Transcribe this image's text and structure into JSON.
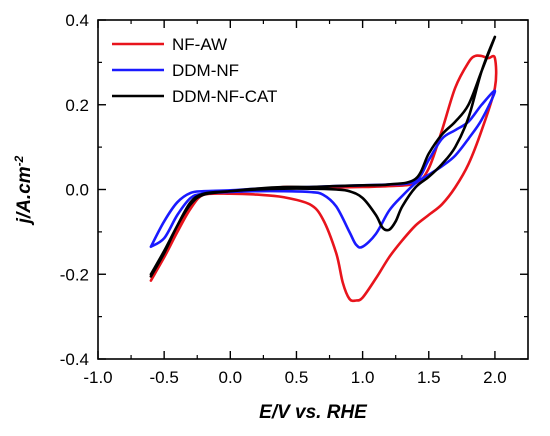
{
  "chart_data": {
    "type": "line",
    "title": "",
    "xlabel": "E/V vs. RHE",
    "ylabel_main": "j/A.cm",
    "ylabel_sup": "-2",
    "xlim": [
      -1.0,
      2.25
    ],
    "ylim": [
      -0.4,
      0.4
    ],
    "xticks": [
      -1.0,
      -0.5,
      0.0,
      0.5,
      1.0,
      1.5,
      2.0
    ],
    "xtick_labels": [
      "-1.0",
      "-0.5",
      "0.0",
      "0.5",
      "1.0",
      "1.5",
      "2.0"
    ],
    "yticks": [
      -0.4,
      -0.2,
      0.0,
      0.2,
      0.4
    ],
    "ytick_labels": [
      "-0.4",
      "-0.2",
      "0.0",
      "0.2",
      "0.4"
    ],
    "grid": false,
    "legend_position": "top-left",
    "series": [
      {
        "name": "NF-AW",
        "color": "#e8141c",
        "x": [
          -0.6,
          -0.5,
          -0.4,
          -0.3,
          -0.2,
          0.0,
          0.2,
          0.4,
          0.6,
          0.8,
          1.0,
          1.2,
          1.4,
          1.5,
          1.6,
          1.7,
          1.8,
          1.85,
          1.9,
          1.95,
          2.0,
          2.0,
          1.9,
          1.8,
          1.7,
          1.6,
          1.5,
          1.4,
          1.3,
          1.2,
          1.1,
          1.0,
          0.95,
          0.9,
          0.85,
          0.8,
          0.7,
          0.6,
          0.4,
          0.2,
          0.0,
          -0.2,
          -0.3,
          -0.4,
          -0.5,
          -0.6
        ],
        "y": [
          -0.215,
          -0.16,
          -0.1,
          -0.045,
          -0.012,
          -0.006,
          -0.002,
          0.006,
          0.004,
          0.005,
          0.006,
          0.008,
          0.015,
          0.05,
          0.14,
          0.24,
          0.3,
          0.315,
          0.315,
          0.31,
          0.31,
          0.24,
          0.14,
          0.06,
          0.005,
          -0.035,
          -0.06,
          -0.085,
          -0.12,
          -0.16,
          -0.21,
          -0.255,
          -0.262,
          -0.258,
          -0.22,
          -0.15,
          -0.07,
          -0.035,
          -0.018,
          -0.012,
          -0.01,
          -0.012,
          -0.035,
          -0.095,
          -0.155,
          -0.205
        ]
      },
      {
        "name": "DDM-NF",
        "color": "#1a1aff",
        "x": [
          -0.6,
          -0.5,
          -0.4,
          -0.3,
          -0.2,
          0.0,
          0.2,
          0.4,
          0.6,
          0.8,
          1.0,
          1.2,
          1.4,
          1.5,
          1.6,
          1.7,
          1.8,
          1.9,
          2.0,
          1.9,
          1.8,
          1.7,
          1.6,
          1.5,
          1.4,
          1.3,
          1.2,
          1.1,
          1.0,
          0.95,
          0.9,
          0.8,
          0.7,
          0.6,
          0.4,
          0.2,
          0.0,
          -0.2,
          -0.3,
          -0.4,
          -0.5,
          -0.6
        ],
        "y": [
          -0.135,
          -0.075,
          -0.03,
          -0.008,
          -0.004,
          -0.002,
          0.002,
          0.004,
          0.006,
          0.008,
          0.01,
          0.012,
          0.02,
          0.07,
          0.12,
          0.14,
          0.16,
          0.2,
          0.232,
          0.165,
          0.12,
          0.08,
          0.055,
          0.035,
          0.015,
          -0.015,
          -0.05,
          -0.105,
          -0.135,
          -0.13,
          -0.1,
          -0.04,
          -0.012,
          -0.006,
          -0.004,
          -0.004,
          -0.006,
          -0.01,
          -0.02,
          -0.06,
          -0.115,
          -0.135
        ]
      },
      {
        "name": "DDM-NF-CAT",
        "color": "#000000",
        "x": [
          -0.6,
          -0.5,
          -0.4,
          -0.3,
          -0.2,
          0.0,
          0.2,
          0.4,
          0.6,
          0.8,
          1.0,
          1.2,
          1.4,
          1.5,
          1.6,
          1.7,
          1.8,
          1.9,
          2.0,
          1.9,
          1.8,
          1.7,
          1.6,
          1.5,
          1.4,
          1.3,
          1.25,
          1.2,
          1.15,
          1.1,
          1.0,
          0.9,
          0.8,
          0.6,
          0.4,
          0.2,
          0.0,
          -0.2,
          -0.3,
          -0.4,
          -0.5,
          -0.6
        ],
        "y": [
          -0.205,
          -0.15,
          -0.085,
          -0.035,
          -0.012,
          -0.004,
          0.002,
          0.006,
          0.006,
          0.008,
          0.01,
          0.012,
          0.025,
          0.085,
          0.13,
          0.16,
          0.2,
          0.28,
          0.36,
          0.28,
          0.17,
          0.1,
          0.06,
          0.03,
          0.005,
          -0.04,
          -0.075,
          -0.095,
          -0.09,
          -0.06,
          -0.02,
          -0.004,
          0.0,
          0.002,
          0.002,
          0.0,
          -0.004,
          -0.01,
          -0.03,
          -0.085,
          -0.145,
          -0.2
        ]
      }
    ]
  }
}
